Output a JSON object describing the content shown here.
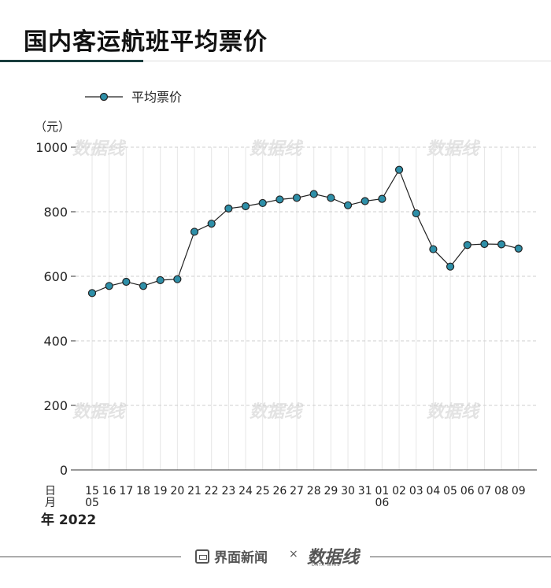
{
  "page": {
    "title": "国内客运航班平均票价"
  },
  "chart_data": {
    "type": "line",
    "unit": "（元）",
    "legend": [
      "平均票价"
    ],
    "ylim": [
      0,
      1000
    ],
    "yticks": [
      0,
      200,
      400,
      600,
      800,
      1000
    ],
    "grid": true,
    "legend_position": "top-left",
    "categories": [
      "15",
      "16",
      "17",
      "18",
      "19",
      "20",
      "21",
      "22",
      "23",
      "24",
      "25",
      "26",
      "27",
      "28",
      "29",
      "30",
      "31",
      "01",
      "02",
      "03",
      "04",
      "05",
      "06",
      "07",
      "08",
      "09"
    ],
    "month_labels": [
      {
        "index": 0,
        "label": "05"
      },
      {
        "index": 17,
        "label": "06"
      }
    ],
    "axis_labels": {
      "day": "日",
      "month": "月",
      "year": "年 2022"
    },
    "series": [
      {
        "name": "平均票价",
        "color": "#2e8fa8",
        "values": [
          548,
          570,
          583,
          570,
          588,
          591,
          738,
          763,
          810,
          817,
          827,
          838,
          843,
          855,
          843,
          820,
          833,
          840,
          930,
          795,
          684,
          630,
          697,
          700,
          699,
          686
        ]
      }
    ]
  },
  "footer": {
    "brand1": "界面新闻",
    "separator": "×",
    "brand2": "数据线",
    "brand2_sub": "DATA WIRE"
  },
  "watermark": {
    "text": "数据线",
    "color": "#e3e3e3"
  }
}
